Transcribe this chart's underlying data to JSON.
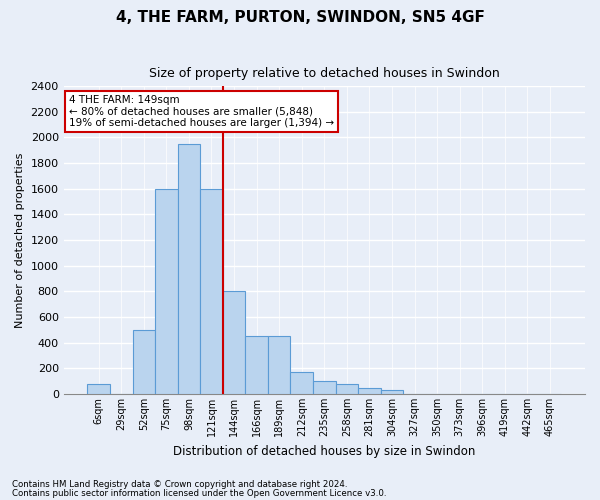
{
  "title": "4, THE FARM, PURTON, SWINDON, SN5 4GF",
  "subtitle": "Size of property relative to detached houses in Swindon",
  "xlabel": "Distribution of detached houses by size in Swindon",
  "ylabel": "Number of detached properties",
  "bar_labels": [
    "6sqm",
    "29sqm",
    "52sqm",
    "75sqm",
    "98sqm",
    "121sqm",
    "144sqm",
    "166sqm",
    "189sqm",
    "212sqm",
    "235sqm",
    "258sqm",
    "281sqm",
    "304sqm",
    "327sqm",
    "350sqm",
    "373sqm",
    "396sqm",
    "419sqm",
    "442sqm",
    "465sqm"
  ],
  "bar_values": [
    75,
    0,
    500,
    1600,
    1950,
    1600,
    800,
    450,
    450,
    175,
    100,
    80,
    50,
    30,
    0,
    0,
    0,
    0,
    0,
    0,
    0
  ],
  "bar_color": "#bad4ee",
  "bar_edge_color": "#5b9bd5",
  "vline_index": 6,
  "vline_color": "#cc0000",
  "annotation_text": "4 THE FARM: 149sqm\n← 80% of detached houses are smaller (5,848)\n19% of semi-detached houses are larger (1,394) →",
  "annotation_box_facecolor": "#ffffff",
  "annotation_box_edgecolor": "#cc0000",
  "ylim": [
    0,
    2400
  ],
  "yticks": [
    0,
    200,
    400,
    600,
    800,
    1000,
    1200,
    1400,
    1600,
    1800,
    2000,
    2200,
    2400
  ],
  "footer_line1": "Contains HM Land Registry data © Crown copyright and database right 2024.",
  "footer_line2": "Contains public sector information licensed under the Open Government Licence v3.0.",
  "bg_color": "#e8eef8",
  "grid_color": "#ffffff"
}
